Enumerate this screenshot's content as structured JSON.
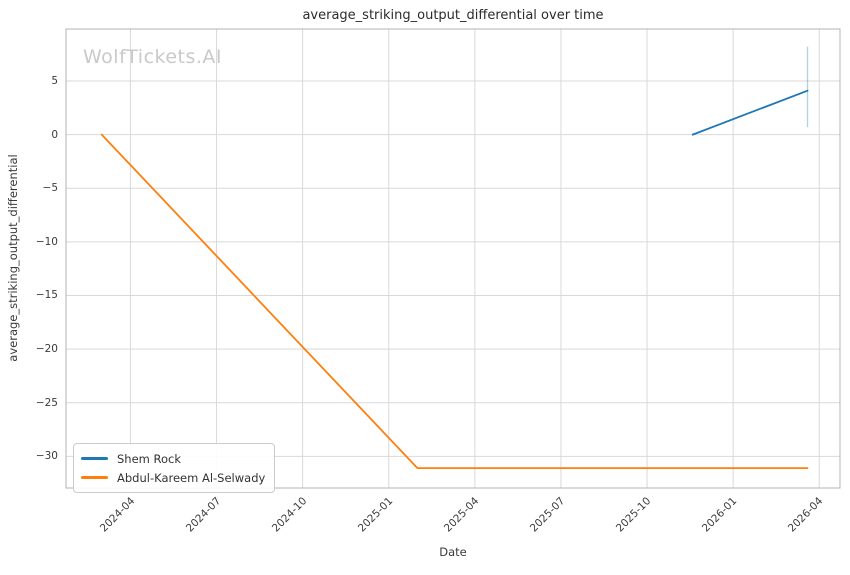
{
  "chart_data": {
    "type": "line",
    "title": "average_striking_output_differential over time",
    "watermark": "WolfTickets.AI",
    "xlabel": "Date",
    "ylabel": "average_striking_output_differential",
    "x_ticks": [
      {
        "label": "2024-04",
        "date": "2024-04-01"
      },
      {
        "label": "2024-07",
        "date": "2024-07-01"
      },
      {
        "label": "2024-10",
        "date": "2024-10-01"
      },
      {
        "label": "2025-01",
        "date": "2025-01-01"
      },
      {
        "label": "2025-04",
        "date": "2025-04-01"
      },
      {
        "label": "2025-07",
        "date": "2025-07-01"
      },
      {
        "label": "2025-10",
        "date": "2025-10-01"
      },
      {
        "label": "2026-01",
        "date": "2026-01-01"
      },
      {
        "label": "2026-04",
        "date": "2026-04-01"
      }
    ],
    "y_ticks": [
      {
        "label": "5",
        "value": 5
      },
      {
        "label": "0",
        "value": 0
      },
      {
        "label": "−5",
        "value": -5
      },
      {
        "label": "−10",
        "value": -10
      },
      {
        "label": "−15",
        "value": -15
      },
      {
        "label": "−20",
        "value": -20
      },
      {
        "label": "−25",
        "value": -25
      },
      {
        "label": "−30",
        "value": -30
      }
    ],
    "xlim": [
      "2024-01-24",
      "2026-04-23"
    ],
    "ylim": [
      -32.95,
      9.85
    ],
    "grid": true,
    "legend_position": "lower left",
    "series": [
      {
        "name": "Shem Rock",
        "color": "#1f77b4",
        "points": [
          [
            "2025-11-19",
            0.0
          ],
          [
            "2026-03-19",
            4.1
          ]
        ]
      },
      {
        "name": "Abdul-Kareem Al-Selwady",
        "color": "#ff7f0e",
        "points": [
          [
            "2024-03-01",
            0.0
          ],
          [
            "2025-02-01",
            -31.1
          ],
          [
            "2026-03-19",
            -31.1
          ]
        ]
      }
    ],
    "error_bar": {
      "series": "Shem Rock",
      "date": "2026-03-19",
      "low": 0.7,
      "high": 8.2,
      "color": "rgba(31,119,180,0.35)"
    }
  },
  "colors": {
    "grid": "#d9d9d9",
    "spine": "#b3b3b3",
    "background": "#ffffff"
  }
}
